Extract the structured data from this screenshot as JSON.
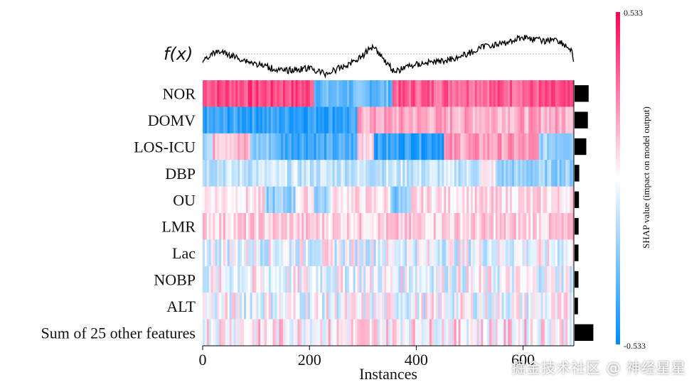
{
  "chart_data": {
    "type": "heatmap",
    "title": "",
    "xlabel": "Instances",
    "ylabel": "",
    "fx_label": "f(x)",
    "xlim": [
      0,
      695
    ],
    "x_ticks": [
      0,
      200,
      400,
      600
    ],
    "features": [
      "NOR",
      "DOMV",
      "LOS-ICU",
      "DBP",
      "OU",
      "LMR",
      "Lac",
      "NOBP",
      "ALT",
      "Sum of 25 other features"
    ],
    "feature_importance": [
      0.09,
      0.085,
      0.075,
      0.03,
      0.028,
      0.026,
      0.025,
      0.025,
      0.022,
      0.12
    ],
    "colorbar": {
      "max_label": "0.533",
      "min_label": "-0.533",
      "label": "SHAP value (impact on model output)",
      "high_color": "#ff0052",
      "low_color": "#008bfb"
    },
    "segments_description_values": [
      [
        [
          0,
          210,
          0.38
        ],
        [
          210,
          355,
          -0.32
        ],
        [
          355,
          695,
          0.34
        ]
      ],
      [
        [
          0,
          290,
          -0.42
        ],
        [
          290,
          695,
          0.18
        ]
      ],
      [
        [
          0,
          20,
          -0.15
        ],
        [
          20,
          90,
          0.15
        ],
        [
          90,
          140,
          -0.25
        ],
        [
          140,
          290,
          -0.38
        ],
        [
          290,
          320,
          0.12
        ],
        [
          320,
          450,
          -0.42
        ],
        [
          450,
          630,
          0.2
        ],
        [
          630,
          695,
          -0.2
        ]
      ],
      [
        [
          0,
          520,
          -0.12
        ],
        [
          520,
          550,
          0.02
        ],
        [
          550,
          695,
          -0.22
        ]
      ],
      [
        [
          0,
          115,
          0.06
        ],
        [
          115,
          172,
          -0.22
        ],
        [
          172,
          210,
          0.06
        ],
        [
          210,
          240,
          -0.2
        ],
        [
          240,
          350,
          0.06
        ],
        [
          350,
          390,
          -0.25
        ],
        [
          390,
          695,
          0.07
        ]
      ],
      [
        [
          0,
          695,
          0.1
        ]
      ],
      [
        [
          0,
          695,
          -0.03
        ]
      ],
      [
        [
          0,
          695,
          -0.02
        ]
      ],
      [
        [
          0,
          695,
          -0.02
        ]
      ],
      [
        [
          0,
          695,
          0.05
        ]
      ]
    ]
  },
  "watermark": "掘金技术社区 @ 神经星星"
}
